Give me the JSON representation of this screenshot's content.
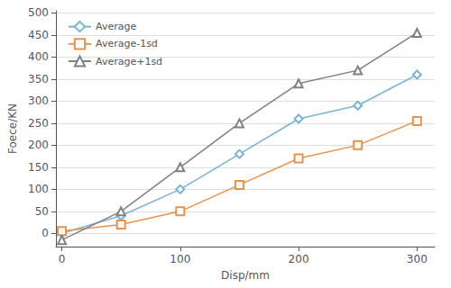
{
  "chart_data": {
    "type": "line",
    "xlabel": "Disp/mm",
    "ylabel": "Foece/KN",
    "x": [
      0,
      50,
      100,
      150,
      200,
      250,
      300
    ],
    "series": [
      {
        "name": "Average",
        "color": "#7ab3d4",
        "marker": "diamond",
        "values": [
          0,
          40,
          100,
          180,
          260,
          290,
          360
        ]
      },
      {
        "name": "Average-1sd",
        "color": "#e8924a",
        "marker": "square",
        "values": [
          5,
          20,
          50,
          110,
          170,
          200,
          255
        ]
      },
      {
        "name": "Average+1sd",
        "color": "#808080",
        "marker": "triangle",
        "values": [
          -15,
          50,
          150,
          250,
          340,
          370,
          455
        ]
      }
    ],
    "xlim": [
      -5,
      315
    ],
    "xticks": [
      0,
      100,
      200,
      300
    ],
    "ylim": [
      -30,
      505
    ],
    "yticks": [
      0,
      50,
      100,
      150,
      200,
      250,
      300,
      350,
      400,
      450,
      500
    ],
    "grid": true,
    "legend": "upper left"
  }
}
